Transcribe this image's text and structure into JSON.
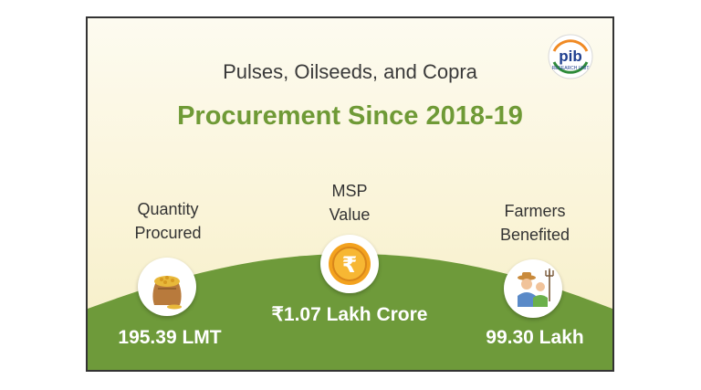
{
  "header": {
    "subtitle": "Pulses, Oilseeds, and Copra",
    "title": "Procurement Since 2018-19"
  },
  "logo": {
    "text": "pib",
    "subtext": "RESEARCH UNIT"
  },
  "stats": [
    {
      "label_line1": "Quantity",
      "label_line2": "Procured",
      "value": "195.39 LMT",
      "icon": "grain-sack-icon"
    },
    {
      "label_line1": "MSP",
      "label_line2": "Value",
      "value": "₹1.07 Lakh Crore",
      "icon": "rupee-coin-icon"
    },
    {
      "label_line1": "Farmers",
      "label_line2": "Benefited",
      "value": "99.30 Lakh",
      "icon": "farmers-icon"
    }
  ],
  "colors": {
    "accent_green": "#6f9a36",
    "hill_green": "#6e9a3a",
    "coin_gold": "#f3a21e"
  }
}
